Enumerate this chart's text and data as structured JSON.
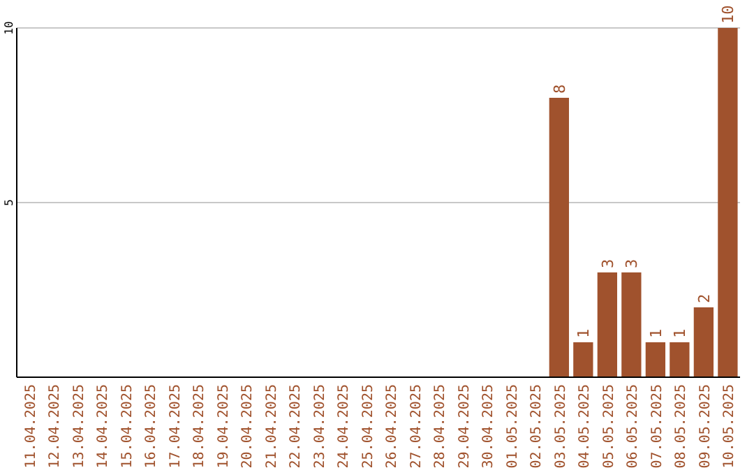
{
  "chart_data": {
    "type": "bar",
    "categories": [
      "11.04.2025",
      "12.04.2025",
      "13.04.2025",
      "14.04.2025",
      "15.04.2025",
      "16.04.2025",
      "17.04.2025",
      "18.04.2025",
      "19.04.2025",
      "20.04.2025",
      "21.04.2025",
      "22.04.2025",
      "23.04.2025",
      "24.04.2025",
      "25.04.2025",
      "26.04.2025",
      "27.04.2025",
      "28.04.2025",
      "29.04.2025",
      "30.04.2025",
      "01.05.2025",
      "02.05.2025",
      "03.05.2025",
      "04.05.2025",
      "05.05.2025",
      "06.05.2025",
      "07.05.2025",
      "08.05.2025",
      "09.05.2025",
      "10.05.2025"
    ],
    "values": [
      0,
      0,
      0,
      0,
      0,
      0,
      0,
      0,
      0,
      0,
      0,
      0,
      0,
      0,
      0,
      0,
      0,
      0,
      0,
      0,
      0,
      0,
      8,
      1,
      3,
      3,
      1,
      1,
      2,
      10
    ],
    "value_labels": [
      null,
      null,
      null,
      null,
      null,
      null,
      null,
      null,
      null,
      null,
      null,
      null,
      null,
      null,
      null,
      null,
      null,
      null,
      null,
      null,
      null,
      null,
      "8",
      "1",
      "3",
      "3",
      "1",
      "1",
      "2",
      "10"
    ],
    "color": "#a0522d",
    "ylim": [
      0,
      10
    ],
    "yticks": [
      5,
      10
    ],
    "grid": "y"
  }
}
